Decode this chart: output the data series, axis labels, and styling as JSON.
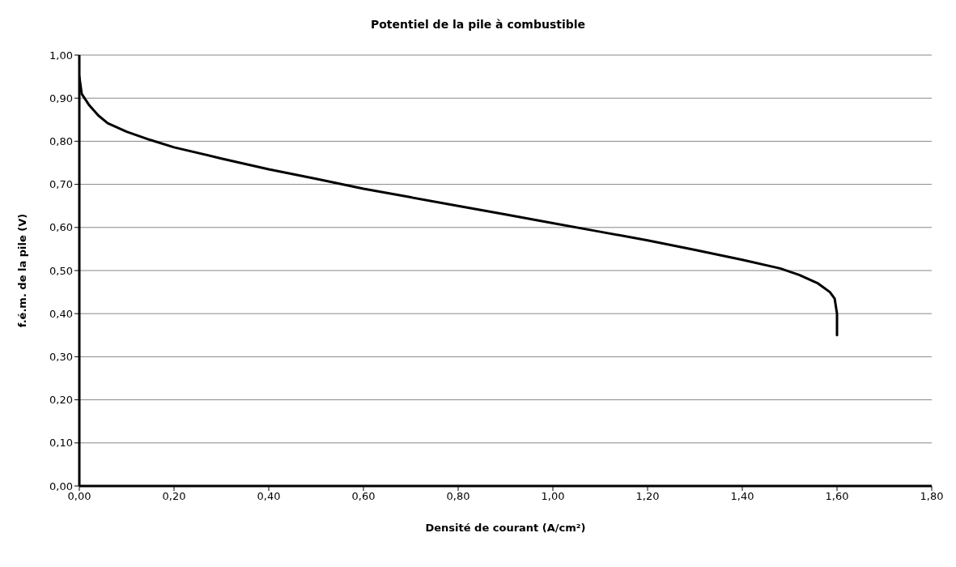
{
  "chart_data": {
    "type": "line",
    "title": "Potentiel de la pile à combustible",
    "xlabel": "Densité de courant (A/cm²)",
    "ylabel": "f.é.m. de la pile (V)",
    "x": [
      0,
      0.005,
      0.02,
      0.04,
      0.06,
      0.1,
      0.15,
      0.2,
      0.3,
      0.4,
      0.5,
      0.6,
      0.7,
      0.8,
      0.9,
      1.0,
      1.1,
      1.2,
      1.3,
      1.4,
      1.48,
      1.52,
      1.56,
      1.585,
      1.595,
      1.6,
      1.6
    ],
    "series": [
      {
        "color": "#000000",
        "values": [
          0.95,
          0.91,
          0.885,
          0.86,
          0.842,
          0.822,
          0.803,
          0.786,
          0.76,
          0.735,
          0.713,
          0.69,
          0.67,
          0.65,
          0.63,
          0.61,
          0.59,
          0.57,
          0.548,
          0.525,
          0.505,
          0.49,
          0.47,
          0.45,
          0.435,
          0.4,
          0.35
        ]
      }
    ],
    "xlim": [
      0,
      1.8
    ],
    "xticks": [
      {
        "value": 0,
        "label": "0,00"
      },
      {
        "value": 0.2,
        "label": "0,20"
      },
      {
        "value": 0.4,
        "label": "0,40"
      },
      {
        "value": 0.6,
        "label": "0,60"
      },
      {
        "value": 0.8,
        "label": "0,80"
      },
      {
        "value": 1.0,
        "label": "1,00"
      },
      {
        "value": 1.2,
        "label": "1,20"
      },
      {
        "value": 1.4,
        "label": "1,40"
      },
      {
        "value": 1.6,
        "label": "1,60"
      },
      {
        "value": 1.8,
        "label": "1,80"
      }
    ],
    "ylim": [
      0,
      1
    ],
    "yticks": [
      {
        "value": 0,
        "label": "0,00"
      },
      {
        "value": 0.1,
        "label": "0,10"
      },
      {
        "value": 0.2,
        "label": "0,20"
      },
      {
        "value": 0.3,
        "label": "0,30"
      },
      {
        "value": 0.4,
        "label": "0,40"
      },
      {
        "value": 0.5,
        "label": "0,50"
      },
      {
        "value": 0.6,
        "label": "0,60"
      },
      {
        "value": 0.7,
        "label": "0,70"
      },
      {
        "value": 0.8,
        "label": "0,80"
      },
      {
        "value": 0.9,
        "label": "0,90"
      },
      {
        "value": 1.0,
        "label": "1,00"
      }
    ],
    "grid": "y",
    "legend": false,
    "marker": "none",
    "line_style": "solid"
  }
}
